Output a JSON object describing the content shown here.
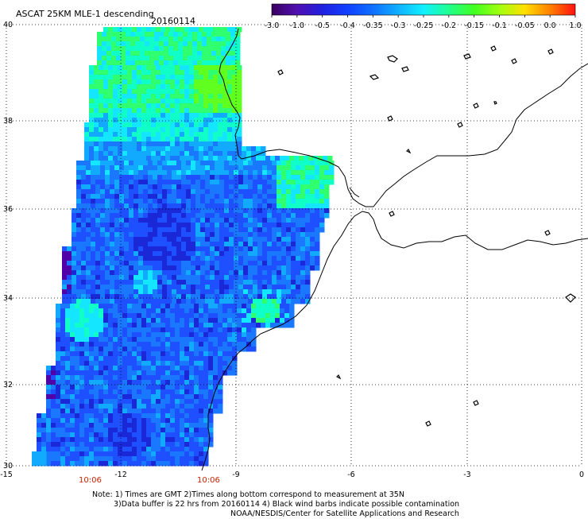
{
  "header": {
    "product": "ASCAT 25KM MLE-1 descending",
    "date": "20160114"
  },
  "colorbar": {
    "ticks": [
      "-3.0",
      "-1.0",
      "-0.5",
      "-0.4",
      "-0.35",
      "-0.3",
      "-0.25",
      "-0.2",
      "-0.15",
      "-0.1",
      "-0.05",
      "0.0",
      "1.0"
    ],
    "colors": [
      "#3a0060",
      "#5010b0",
      "#2020e0",
      "#1040ff",
      "#1070ff",
      "#10b0ff",
      "#10f0ff",
      "#20ff90",
      "#40ff20",
      "#a0ff10",
      "#ffe000",
      "#ff8000",
      "#ff1010"
    ]
  },
  "map": {
    "lat_labels": [
      "40",
      "38",
      "36",
      "34",
      "32",
      "30"
    ],
    "lon_labels": [
      "-15",
      "-12",
      "-9",
      "-6",
      "-3",
      "0"
    ],
    "time_labels": [
      "10:06",
      "10:06"
    ],
    "field_colors": {
      "deep_purple": "#5000a8",
      "deep_blue": "#1a28d8",
      "blue": "#1f50ff",
      "mid_blue": "#1a78ff",
      "light_blue": "#12aaff",
      "cyan": "#14e6ff",
      "aqua": "#10ffc8",
      "green": "#30ff70",
      "lime": "#60ff20"
    }
  },
  "footer": {
    "line1": "Note: 1) Times are GMT 2)Times along bottom correspond to measurement at 35N",
    "line2": "3)Data buffer is 22 hrs from 20160114 4) Black wind barbs indicate possible contamination",
    "line3": "NOAA/NESDIS/Center for Satellite Applications and Research"
  }
}
